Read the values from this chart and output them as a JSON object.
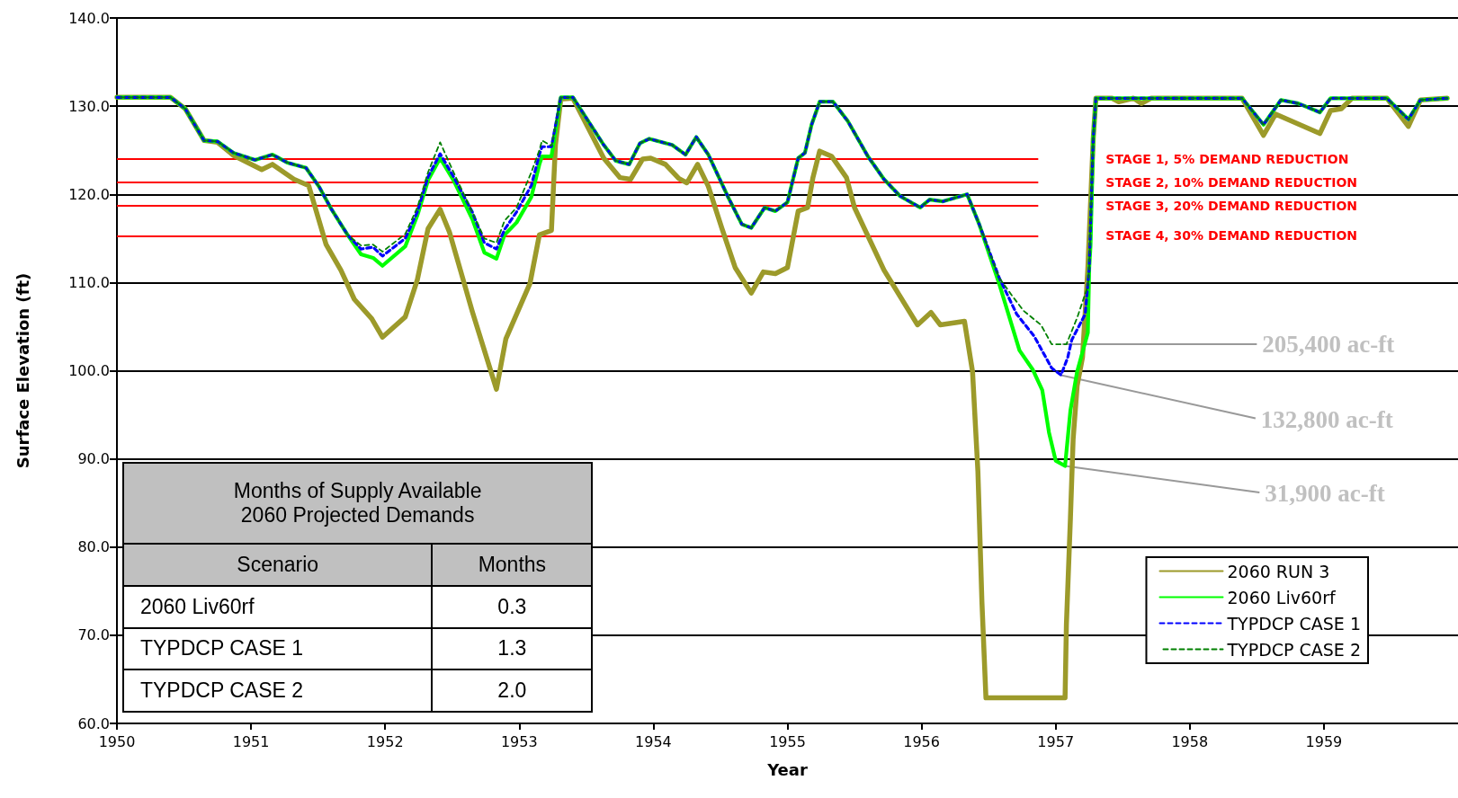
{
  "chart_data": {
    "type": "line",
    "xlabel": "Year",
    "ylabel": "Surface Elevation (ft)",
    "xlim": [
      1950,
      1960
    ],
    "xticks": [
      1950,
      1951,
      1952,
      1953,
      1954,
      1955,
      1956,
      1957,
      1958,
      1959
    ],
    "ylim": [
      60,
      140
    ],
    "yticks": [
      {
        "value": 60,
        "label": "60.0"
      },
      {
        "value": 70,
        "label": "70.0"
      },
      {
        "value": 80,
        "label": "80.0"
      },
      {
        "value": 90,
        "label": "90.0"
      },
      {
        "value": 100,
        "label": "100.0"
      },
      {
        "value": 110,
        "label": "110.0"
      },
      {
        "value": 120,
        "label": "120.0"
      },
      {
        "value": 130,
        "label": "130.0"
      },
      {
        "value": 140,
        "label": "140.0"
      }
    ],
    "grid": "y",
    "legend": "bottom right",
    "marker": "none",
    "series": [
      {
        "name": "2060 RUN 3",
        "color": "#9c9a2a",
        "line_style": "solid",
        "x": [
          1950,
          1950.4,
          1950.51,
          1950.65,
          1950.75,
          1950.87,
          1951.08,
          1951.16,
          1951.32,
          1951.43,
          1951.56,
          1951.67,
          1951.77,
          1951.9,
          1951.98,
          1952.15,
          1952.24,
          1952.32,
          1952.41,
          1952.48,
          1952.65,
          1952.83,
          1952.9,
          1953.08,
          1953.15,
          1953.24,
          1953.27,
          1953.31,
          1953.4,
          1953.63,
          1953.75,
          1953.83,
          1953.92,
          1953.98,
          1954.09,
          1954.19,
          1954.25,
          1954.33,
          1954.41,
          1954.51,
          1954.61,
          1954.73,
          1954.82,
          1954.91,
          1955,
          1955.08,
          1955.15,
          1955.19,
          1955.24,
          1955.33,
          1955.44,
          1955.5,
          1955.72,
          1955.97,
          1956.07,
          1956.14,
          1956.32,
          1956.38,
          1956.42,
          1956.45,
          1956.48,
          1957.07,
          1957.08,
          1957.11,
          1957.13,
          1957.16,
          1957.2,
          1957.24,
          1957.28,
          1957.3,
          1957.42,
          1957.47,
          1957.58,
          1957.64,
          1957.71,
          1958.39,
          1958.55,
          1958.64,
          1958.97,
          1959.05,
          1959.13,
          1959.21,
          1959.47,
          1959.63,
          1959.72,
          1959.92
        ],
        "values": [
          131,
          131,
          129.7,
          126.1,
          125.9,
          124.4,
          122.8,
          123.4,
          121.7,
          121,
          114.3,
          111.4,
          108.1,
          105.9,
          103.8,
          106.1,
          110.3,
          116.1,
          118.3,
          115.7,
          106.7,
          97.9,
          103.6,
          109.9,
          115.4,
          115.9,
          125.6,
          130.8,
          130.9,
          124.1,
          121.9,
          121.7,
          124,
          124.1,
          123.4,
          121.8,
          121.3,
          123.4,
          120.9,
          116.2,
          111.7,
          108.8,
          111.2,
          111,
          111.7,
          118.1,
          118.5,
          121.9,
          124.9,
          124.3,
          121.9,
          118.5,
          111.4,
          105.2,
          106.6,
          105.2,
          105.6,
          99.9,
          88.6,
          73.8,
          62.9,
          62.9,
          71.2,
          83.3,
          92.2,
          98.3,
          101.5,
          111.6,
          126.3,
          130.9,
          130.9,
          130.5,
          130.9,
          130.3,
          130.9,
          130.9,
          126.7,
          129.1,
          126.9,
          129.5,
          129.7,
          130.9,
          130.9,
          127.7,
          130.7,
          130.9
        ]
      },
      {
        "name": "2060 Liv60rf",
        "color": "#00ff00",
        "line_style": "solid",
        "x": [
          1950,
          1950.4,
          1950.51,
          1950.65,
          1950.75,
          1950.87,
          1951.03,
          1951.16,
          1951.27,
          1951.41,
          1951.51,
          1951.6,
          1951.72,
          1951.82,
          1951.91,
          1951.98,
          1952.15,
          1952.24,
          1952.32,
          1952.41,
          1952.51,
          1952.65,
          1952.74,
          1952.83,
          1952.89,
          1952.98,
          1953.09,
          1953.15,
          1953.17,
          1953.24,
          1953.31,
          1953.4,
          1953.63,
          1953.72,
          1953.82,
          1953.9,
          1953.97,
          1954.14,
          1954.24,
          1954.32,
          1954.41,
          1954.56,
          1954.66,
          1954.73,
          1954.83,
          1954.91,
          1955,
          1955.08,
          1955.13,
          1955.18,
          1955.24,
          1955.34,
          1955.45,
          1955.6,
          1955.72,
          1955.84,
          1955.99,
          1956.06,
          1956.16,
          1956.34,
          1956.43,
          1956.58,
          1956.73,
          1956.83,
          1956.9,
          1956.95,
          1957,
          1957.07,
          1957.11,
          1957.16,
          1957.24,
          1957.25,
          1957.26,
          1957.28,
          1957.3,
          1958.39,
          1958.55,
          1958.68,
          1958.81,
          1958.97,
          1959.05,
          1959.47,
          1959.63,
          1959.72,
          1959.92
        ],
        "values": [
          131,
          131,
          129.7,
          126.1,
          126,
          124.7,
          123.9,
          124.5,
          123.6,
          123,
          120.8,
          118.3,
          115.4,
          113.2,
          112.8,
          111.9,
          114.1,
          117.6,
          121.6,
          124.1,
          121.6,
          117.2,
          113.4,
          112.7,
          115.4,
          116.8,
          119.7,
          123.4,
          124.3,
          124.3,
          131,
          131,
          125.6,
          123.8,
          123.4,
          125.8,
          126.3,
          125.6,
          124.5,
          126.5,
          124.5,
          119.6,
          116.6,
          116.2,
          118.5,
          118.1,
          119.1,
          124.1,
          124.7,
          127.9,
          130.5,
          130.5,
          128.3,
          124.3,
          121.7,
          119.8,
          118.5,
          119.4,
          119.2,
          120,
          116.6,
          109.8,
          102.3,
          100.1,
          97.8,
          93,
          89.8,
          89.2,
          95.5,
          99.9,
          104.3,
          111.6,
          114.2,
          126.3,
          130.9,
          130.9,
          127.9,
          130.7,
          130.3,
          129.3,
          130.9,
          130.9,
          128.5,
          130.7,
          130.9
        ]
      },
      {
        "name": "TYPDCP CASE 1",
        "color": "#0000ff",
        "line_style": "dashed",
        "x": [
          1950,
          1950.4,
          1950.51,
          1950.65,
          1950.75,
          1950.87,
          1951.03,
          1951.16,
          1951.27,
          1951.41,
          1951.51,
          1951.6,
          1951.72,
          1951.82,
          1951.91,
          1951.98,
          1952.15,
          1952.24,
          1952.32,
          1952.41,
          1952.51,
          1952.65,
          1952.74,
          1952.83,
          1952.89,
          1952.98,
          1953.09,
          1953.15,
          1953.17,
          1953.24,
          1953.31,
          1953.4,
          1953.63,
          1953.72,
          1953.82,
          1953.9,
          1953.97,
          1954.14,
          1954.24,
          1954.32,
          1954.41,
          1954.56,
          1954.66,
          1954.73,
          1954.83,
          1954.91,
          1955,
          1955.08,
          1955.13,
          1955.18,
          1955.24,
          1955.34,
          1955.45,
          1955.6,
          1955.72,
          1955.84,
          1955.99,
          1956.06,
          1956.16,
          1956.34,
          1956.43,
          1956.58,
          1956.71,
          1956.84,
          1956.97,
          1957.04,
          1957.09,
          1957.12,
          1957.22,
          1957.25,
          1957.28,
          1957.3,
          1958.39,
          1958.55,
          1958.68,
          1958.81,
          1958.97,
          1959.05,
          1959.47,
          1959.63,
          1959.72,
          1959.92
        ],
        "values": [
          131,
          131,
          129.7,
          126.1,
          126,
          124.7,
          123.9,
          124.5,
          123.6,
          123,
          120.8,
          118.3,
          115.4,
          113.8,
          114,
          113,
          115,
          118,
          122,
          124.6,
          122,
          118,
          114.5,
          113.8,
          116,
          118,
          121,
          124.5,
          125.4,
          125.4,
          131,
          131,
          125.6,
          123.8,
          123.4,
          125.8,
          126.3,
          125.6,
          124.5,
          126.5,
          124.5,
          119.6,
          116.6,
          116.2,
          118.5,
          118.1,
          119.1,
          124.1,
          124.7,
          127.9,
          130.5,
          130.5,
          128.3,
          124.3,
          121.7,
          119.8,
          118.5,
          119.4,
          119.2,
          120,
          116.6,
          110.5,
          106.4,
          103.9,
          100.3,
          99.5,
          101.5,
          103.5,
          106.4,
          111.6,
          126.3,
          130.9,
          130.9,
          127.9,
          130.7,
          130.3,
          129.3,
          130.9,
          130.9,
          128.5,
          130.7,
          130.9
        ]
      },
      {
        "name": "TYPDCP CASE 2",
        "color": "#008000",
        "line_style": "dashed",
        "x": [
          1950,
          1950.4,
          1950.51,
          1950.65,
          1950.75,
          1950.87,
          1951.03,
          1951.16,
          1951.27,
          1951.41,
          1951.51,
          1951.6,
          1951.72,
          1951.82,
          1951.91,
          1951.98,
          1952.15,
          1952.24,
          1952.32,
          1952.41,
          1952.51,
          1952.65,
          1952.74,
          1952.83,
          1952.89,
          1952.98,
          1953.09,
          1953.15,
          1953.17,
          1953.24,
          1953.31,
          1953.4,
          1953.63,
          1953.72,
          1953.82,
          1953.9,
          1953.97,
          1954.14,
          1954.24,
          1954.32,
          1954.41,
          1954.56,
          1954.66,
          1954.73,
          1954.83,
          1954.91,
          1955,
          1955.08,
          1955.13,
          1955.18,
          1955.24,
          1955.34,
          1955.45,
          1955.6,
          1955.72,
          1955.84,
          1955.99,
          1956.06,
          1956.16,
          1956.34,
          1956.43,
          1956.58,
          1956.68,
          1956.76,
          1956.89,
          1956.97,
          1957.08,
          1957.16,
          1957.24,
          1957.25,
          1957.28,
          1957.3,
          1958.39,
          1958.55,
          1958.68,
          1958.81,
          1958.97,
          1959.05,
          1959.47,
          1959.63,
          1959.72,
          1959.92
        ],
        "values": [
          131,
          131,
          129.7,
          126.1,
          126,
          124.7,
          123.9,
          124.5,
          123.6,
          123,
          120.8,
          118.3,
          115.4,
          114.2,
          114.3,
          113.5,
          115.5,
          118.5,
          122.5,
          125.9,
          122.5,
          118,
          115,
          114.5,
          117,
          118.5,
          122.5,
          125,
          126.1,
          125.5,
          131,
          131,
          125.6,
          123.8,
          123.4,
          125.8,
          126.3,
          125.6,
          124.5,
          126.5,
          124.5,
          119.6,
          116.6,
          116.2,
          118.5,
          118.1,
          119.1,
          124.1,
          124.7,
          127.9,
          130.5,
          130.5,
          128.3,
          124.3,
          121.7,
          119.8,
          118.5,
          119.4,
          119.2,
          120,
          116.6,
          110.5,
          108.4,
          106.8,
          105.2,
          103,
          103,
          106,
          109.6,
          111.6,
          126.3,
          130.9,
          130.9,
          127.9,
          130.7,
          130.3,
          129.3,
          130.9,
          130.9,
          128.5,
          130.7,
          130.9
        ]
      }
    ],
    "ref_lines": [
      {
        "axis": "y",
        "value": 124,
        "label": "STAGE 1, 5% DEMAND REDUCTION",
        "color": "#ff0000"
      },
      {
        "axis": "y",
        "value": 121.4,
        "label": "STAGE 2, 10% DEMAND REDUCTION",
        "color": "#ff0000"
      },
      {
        "axis": "y",
        "value": 118.7,
        "label": "STAGE 3, 20% DEMAND REDUCTION",
        "color": "#ff0000"
      },
      {
        "axis": "y",
        "value": 115.3,
        "label": "STAGE 4, 30% DEMAND REDUCTION",
        "color": "#ff0000"
      }
    ],
    "annotations": [
      {
        "text": "205,400 ac-ft",
        "x": 1957.05,
        "y": 103
      },
      {
        "text": "132,800 ac-ft",
        "x": 1957.04,
        "y": 99.5
      },
      {
        "text": "31,900 ac-ft",
        "x": 1957.07,
        "y": 89.2
      },
      "Months of Supply Available\n2060 Projected Demands",
      "Scenario",
      "Months",
      "2060 Liv60rf",
      "0.3",
      "TYPDCP CASE 1",
      "1.3",
      "TYPDCP CASE 2",
      "2.0"
    ]
  }
}
